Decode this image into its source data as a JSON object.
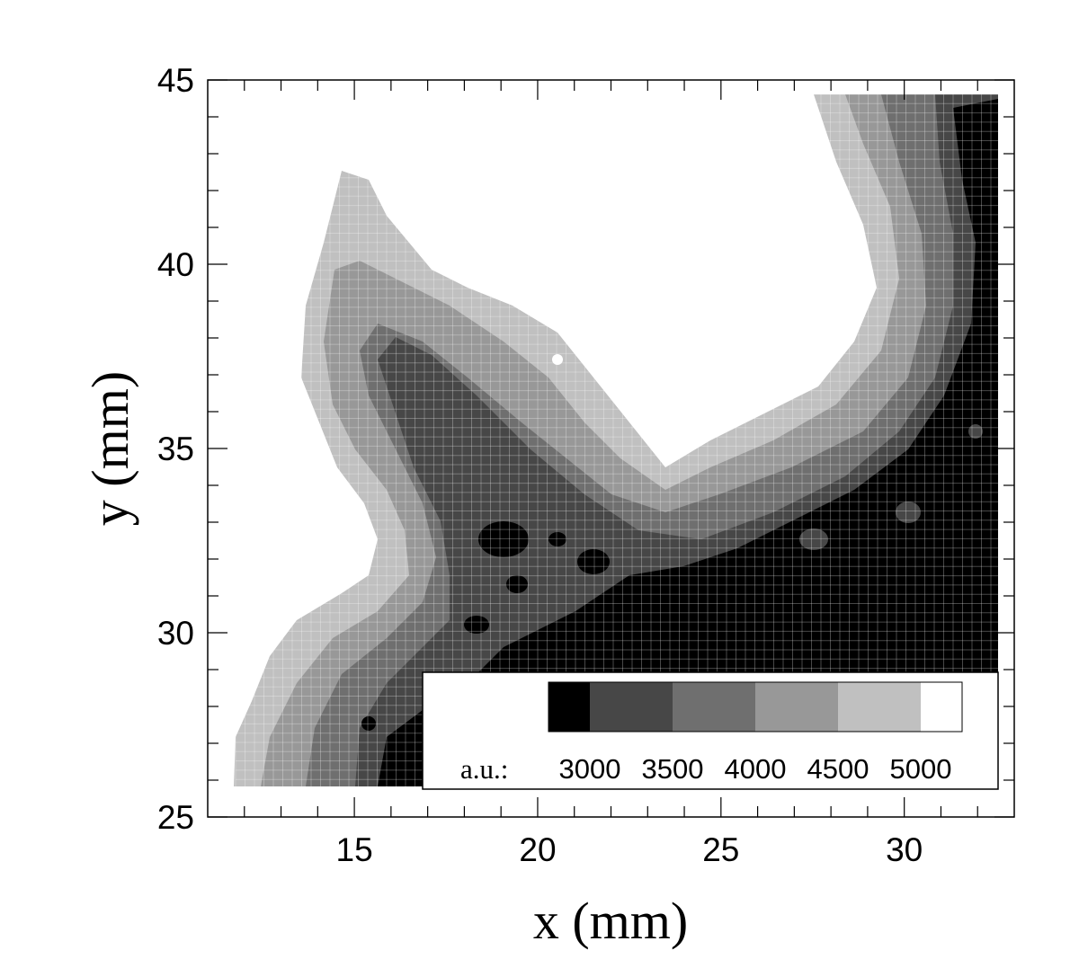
{
  "chart_data": {
    "type": "heatmap",
    "title": "",
    "xlabel": "x (mm)",
    "ylabel": "y (mm)",
    "xlim": [
      11,
      33
    ],
    "ylim": [
      25,
      45
    ],
    "x_ticks": [
      "15",
      "20",
      "25",
      "30"
    ],
    "y_ticks": [
      "25",
      "30",
      "35",
      "40",
      "45"
    ],
    "grid": true,
    "legend": {
      "placement": "bottom-right inside plot",
      "prefix": "a.u.:",
      "levels": [
        "3000",
        "3500",
        "4000",
        "4500",
        "5000"
      ],
      "colors": [
        "#000000",
        "#474747",
        "#6f6f6f",
        "#989898",
        "#c0c0c0",
        "#ffffff"
      ]
    },
    "description_note": "filled contour map of intensity; white bulb region (>5000) upper center, dark (<3000) region at right and lower-right"
  }
}
